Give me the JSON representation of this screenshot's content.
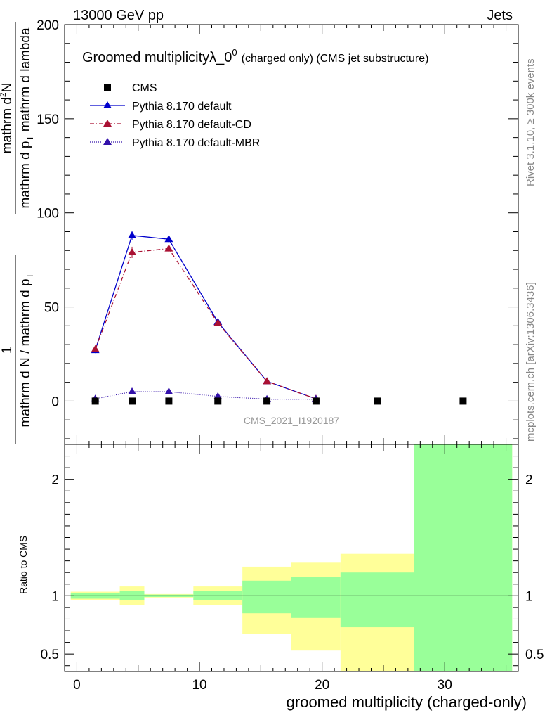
{
  "header": {
    "energy_label": "13000 GeV pp",
    "process_label": "Jets"
  },
  "sidebar": {
    "rivet_label": "Rivet 3.1.10, ≥ 300k events",
    "site_label": "mcplots.cern.ch [arXiv:1306.3436]"
  },
  "watermark": "CMS_2021_I1920187",
  "colors": {
    "data": "#000000",
    "default": "#0000cc",
    "default_cd": "#aa1133",
    "default_mbr": "#3311aa",
    "band_inner": "#99ff99",
    "band_outer": "#ffff99"
  },
  "chart_data": [
    {
      "type": "line",
      "title_main": "Groomed multiplicityλ_0",
      "title_sup": "0",
      "title_sub": "(charged only) (CMS jet substructure)",
      "ylabel_numerator": "mathrm d",
      "ylabel_numerator_sup": "2",
      "ylabel_numerator_end": "N",
      "ylabel_denominator": "mathrm d p",
      "ylabel_denominator_sub": "T",
      "ylabel_denominator_end": " mathrm d lambda",
      "ylabel_prefix_num": "1",
      "ylabel_prefix_den": "mathrm d N / mathrm d p",
      "ylabel_prefix_sub": "T",
      "xlim": [
        -1,
        36
      ],
      "ylim": [
        -23,
        200
      ],
      "yticks": [
        0,
        50,
        100,
        150,
        200
      ],
      "ytick_labels": [
        "0",
        "50",
        "100",
        "150",
        "200"
      ],
      "legend": [
        {
          "name": "CMS",
          "style": "square"
        },
        {
          "name": "Pythia 8.170 default",
          "style": "solid"
        },
        {
          "name": "Pythia 8.170 default-CD",
          "style": "dashdot"
        },
        {
          "name": "Pythia 8.170 default-MBR",
          "style": "dotted"
        }
      ],
      "series": [
        {
          "name": "CMS",
          "x": [
            1.5,
            4.5,
            7.5,
            11.5,
            15.5,
            19.5,
            24.5,
            31.5
          ],
          "y": [
            0,
            0,
            0,
            0,
            0,
            0,
            0,
            0
          ],
          "yerr": [
            0.3,
            0.3,
            0.3,
            0.3,
            0.3,
            0.3,
            0.3,
            0.3
          ]
        },
        {
          "name": "Pythia 8.170 default",
          "x": [
            1.5,
            4.5,
            7.5,
            11.5,
            15.5,
            19.5
          ],
          "y": [
            27,
            88,
            86,
            42,
            10.5,
            1.2
          ],
          "yerr": [
            1.5,
            2.5,
            2.0,
            1.5,
            0.6,
            0.2
          ]
        },
        {
          "name": "Pythia 8.170 default-CD",
          "x": [
            1.5,
            4.5,
            7.5,
            11.5,
            15.5,
            19.5
          ],
          "y": [
            27.5,
            79,
            81,
            41.5,
            10.5,
            1.2
          ],
          "yerr": [
            1.5,
            3.0,
            2.0,
            1.5,
            0.6,
            0.2
          ]
        },
        {
          "name": "Pythia 8.170 default-MBR",
          "x": [
            1.5,
            4.5,
            7.5,
            11.5,
            15.5,
            19.5
          ],
          "y": [
            1.2,
            5,
            5,
            2.5,
            1.0,
            1.0
          ],
          "yerr": [
            0.3,
            0.4,
            0.4,
            0.3,
            0.2,
            0.2
          ]
        }
      ]
    },
    {
      "type": "area",
      "ylabel": "Ratio to CMS",
      "xlabel": "groomed multiplicity (charged-only)",
      "xlim": [
        -1,
        36
      ],
      "ylim": [
        0.35,
        2.3
      ],
      "xticks": [
        0,
        10,
        20,
        30
      ],
      "xtick_labels": [
        "0",
        "10",
        "20",
        "30"
      ],
      "yticks": [
        0.5,
        1,
        2
      ],
      "ytick_labels": [
        "0.5",
        "1",
        "2"
      ],
      "bins": [
        {
          "lo": -0.5,
          "hi": 3.5,
          "inner": [
            0.975,
            1.025
          ],
          "outer": [
            0.965,
            1.035
          ]
        },
        {
          "lo": 3.5,
          "hi": 5.5,
          "inner": [
            0.96,
            1.04
          ],
          "outer": [
            0.92,
            1.08
          ]
        },
        {
          "lo": 5.5,
          "hi": 9.5,
          "inner": [
            0.99,
            1.01
          ],
          "outer": [
            0.985,
            1.015
          ]
        },
        {
          "lo": 9.5,
          "hi": 13.5,
          "inner": [
            0.96,
            1.04
          ],
          "outer": [
            0.92,
            1.08
          ]
        },
        {
          "lo": 13.5,
          "hi": 17.5,
          "inner": [
            0.85,
            1.13
          ],
          "outer": [
            0.67,
            1.25
          ]
        },
        {
          "lo": 17.5,
          "hi": 21.5,
          "inner": [
            0.81,
            1.16
          ],
          "outer": [
            0.53,
            1.29
          ]
        },
        {
          "lo": 21.5,
          "hi": 27.5,
          "inner": [
            0.73,
            1.2
          ],
          "outer": [
            0.35,
            1.36
          ]
        },
        {
          "lo": 27.5,
          "hi": 35.5,
          "inner": [
            0.35,
            2.3
          ],
          "outer": [
            0.35,
            2.3
          ]
        }
      ]
    }
  ]
}
